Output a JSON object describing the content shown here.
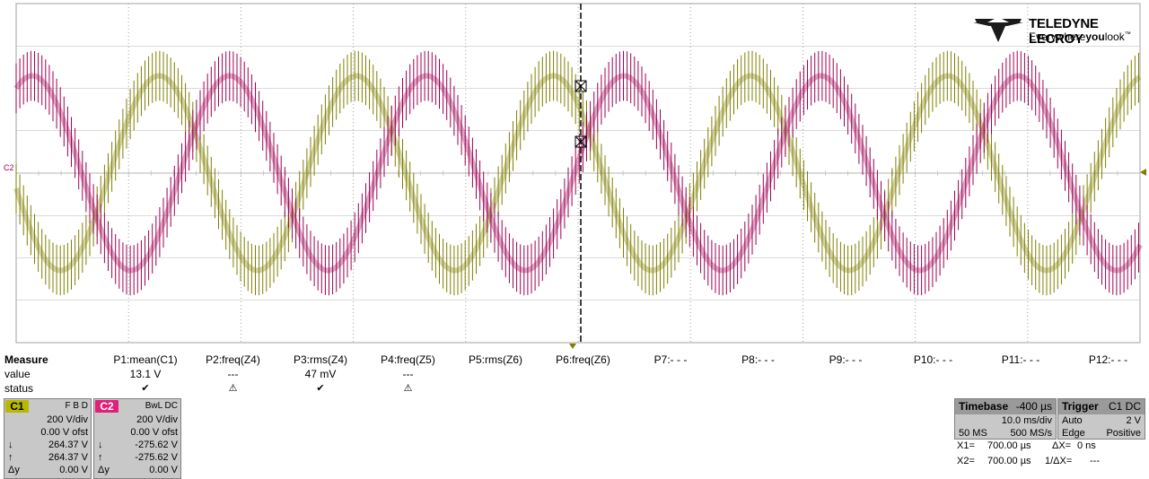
{
  "brand": {
    "name": "TELEDYNE LECROY",
    "tagline_pre": "Everywhere",
    "tagline_bold": "you",
    "tagline_post": "look",
    "tagline_tm": "™"
  },
  "colors": {
    "c1": "#7f7f00",
    "c2": "#9e0054",
    "grid": "#b4b4b4",
    "grid_dot": "#a0a0a0"
  },
  "scope": {
    "c2_marker": "C2",
    "cycles_visible": 5.7,
    "c1_peak_divs": 2.8,
    "c2_peak_divs": 2.8,
    "horizontal_divisions": 10,
    "vertical_divisions": 8
  },
  "measure": {
    "label_measure": "Measure",
    "label_value": "value",
    "label_status": "status",
    "params": [
      {
        "name": "P1:mean(C1)",
        "value": "13.1 V",
        "status": "ok"
      },
      {
        "name": "P2:freq(Z4)",
        "value": "---",
        "status": "warn"
      },
      {
        "name": "P3:rms(Z4)",
        "value": "47 mV",
        "status": "ok"
      },
      {
        "name": "P4:freq(Z5)",
        "value": "---",
        "status": "warn"
      },
      {
        "name": "P5:rms(Z6)",
        "value": "",
        "status": ""
      },
      {
        "name": "P6:freq(Z6)",
        "value": "",
        "status": ""
      },
      {
        "name": "P7:- - -",
        "value": "",
        "status": ""
      },
      {
        "name": "P8:- - -",
        "value": "",
        "status": ""
      },
      {
        "name": "P9:- - -",
        "value": "",
        "status": ""
      },
      {
        "name": "P10:- - -",
        "value": "",
        "status": ""
      },
      {
        "name": "P11:- - -",
        "value": "",
        "status": ""
      },
      {
        "name": "P12:- - -",
        "value": "",
        "status": ""
      }
    ]
  },
  "channels": {
    "c1": {
      "tag": "C1",
      "flags": "F  B  D",
      "vdiv": "200 V/div",
      "offset": "0.00 V ofst",
      "down": "264.37 V",
      "up": "264.37 V",
      "dy_label": "Δy",
      "dy": "0.00 V",
      "sym_down": "↓",
      "sym_up": "↑"
    },
    "c2": {
      "tag": "C2",
      "flags": "BwL  DC",
      "vdiv": "200 V/div",
      "offset": "0.00 V ofst",
      "down": "-275.62 V",
      "up": "-275.62 V",
      "dy_label": "Δy",
      "dy": "0.00 V",
      "sym_down": "↓",
      "sym_up": "↑"
    }
  },
  "timebase": {
    "title": "Timebase",
    "delay": "-400 µs",
    "tdiv": "10.0 ms/div",
    "samples": "50 MS",
    "rate": "500 MS/s"
  },
  "trigger": {
    "title": "Trigger",
    "source": "C1 DC",
    "mode": "Auto",
    "level": "2 V",
    "type": "Edge",
    "slope": "Positive"
  },
  "cursors": {
    "x1_label": "X1=",
    "x1": "700.00 µs",
    "dx_label": "ΔX=",
    "dx": "0 ns",
    "x2_label": "X2=",
    "x2": "700.00 µs",
    "inv_label": "1/ΔX=",
    "inv": "---"
  }
}
